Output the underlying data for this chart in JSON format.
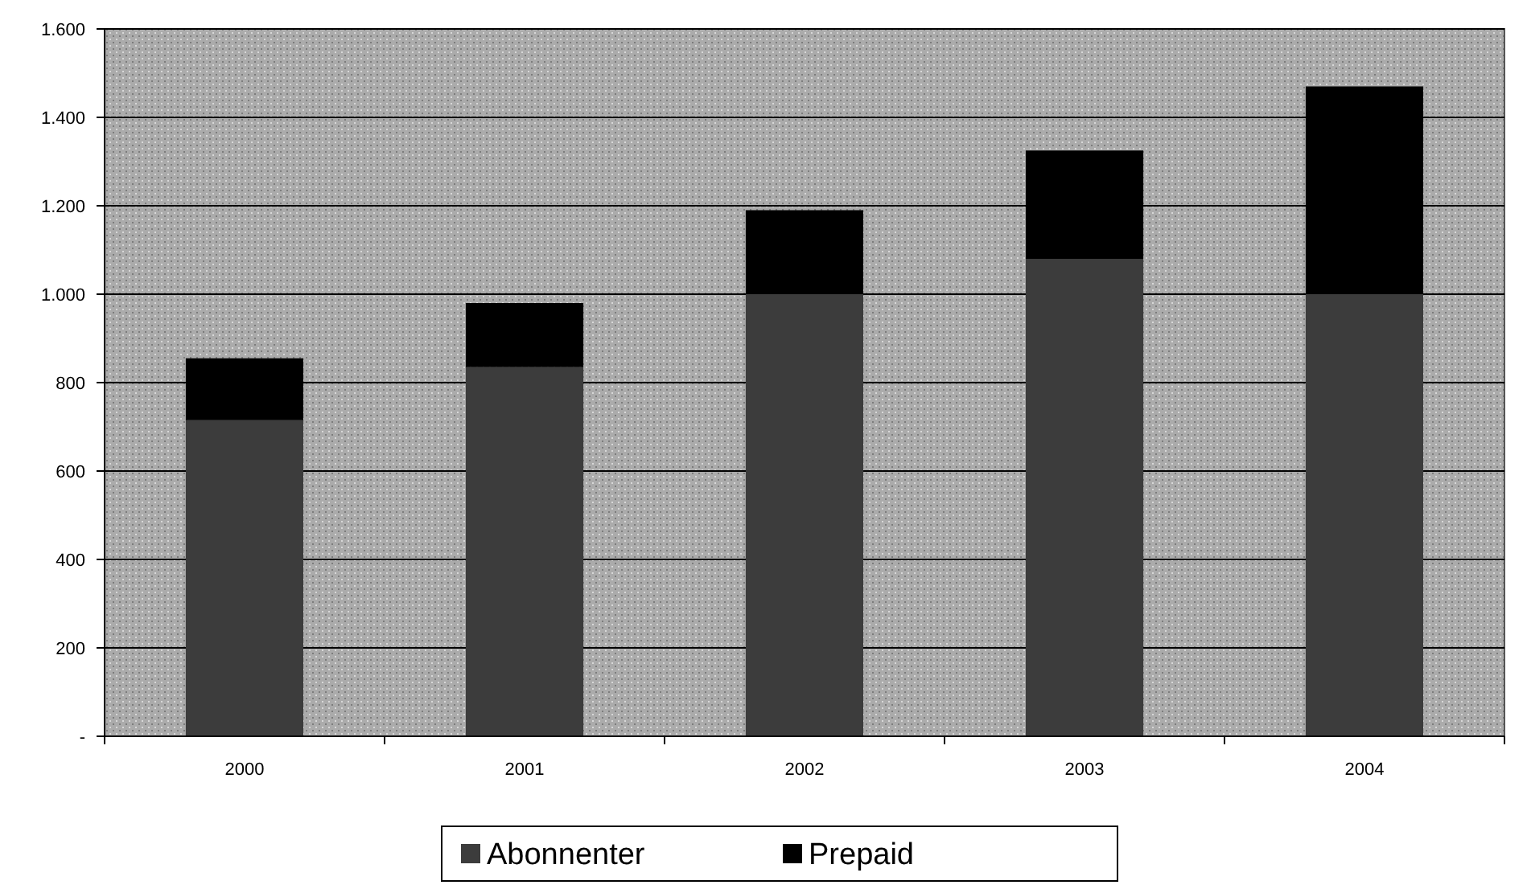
{
  "chart_data": {
    "type": "bar",
    "stacked": true,
    "categories": [
      "2000",
      "2001",
      "2002",
      "2003",
      "2004"
    ],
    "series": [
      {
        "name": "Abonnenter",
        "color": "#3c3c3c",
        "values": [
          715,
          835,
          1000,
          1080,
          1000
        ]
      },
      {
        "name": "Prepaid",
        "color": "#000000",
        "values": [
          140,
          145,
          190,
          245,
          470
        ]
      }
    ],
    "ylim": [
      0,
      1600
    ],
    "yticks": [
      {
        "value": 0,
        "label": "-"
      },
      200,
      400,
      600,
      800,
      {
        "value": 1000,
        "label": "1.000"
      },
      {
        "value": 1200,
        "label": "1.200"
      },
      {
        "value": 1400,
        "label": "1.400"
      },
      {
        "value": 1600,
        "label": "1.600"
      }
    ],
    "grid": "y",
    "legend": "bottom"
  }
}
